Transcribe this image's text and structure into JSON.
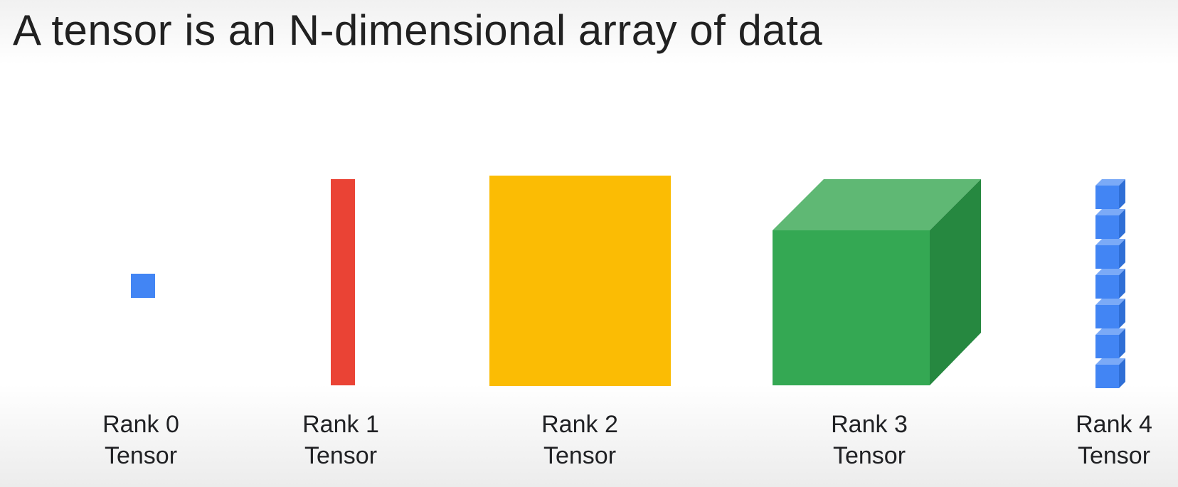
{
  "title": "A tensor is an N-dimensional array of data",
  "colors": {
    "rank0": "#4285f4",
    "rank1": "#ea4335",
    "rank2": "#fbbc04",
    "rank3_front": "#34a853",
    "rank3_top": "#5fb874",
    "rank3_side": "#268840",
    "rank4": "#4285f4"
  },
  "tensors": [
    {
      "rank_label": "Rank 0",
      "noun": "Tensor",
      "icon": "square-icon"
    },
    {
      "rank_label": "Rank 1",
      "noun": "Tensor",
      "icon": "bar-icon"
    },
    {
      "rank_label": "Rank 2",
      "noun": "Tensor",
      "icon": "plane-icon"
    },
    {
      "rank_label": "Rank 3",
      "noun": "Tensor",
      "icon": "cube-icon"
    },
    {
      "rank_label": "Rank 4",
      "noun": "Tensor",
      "icon": "cube-stack-icon"
    }
  ]
}
